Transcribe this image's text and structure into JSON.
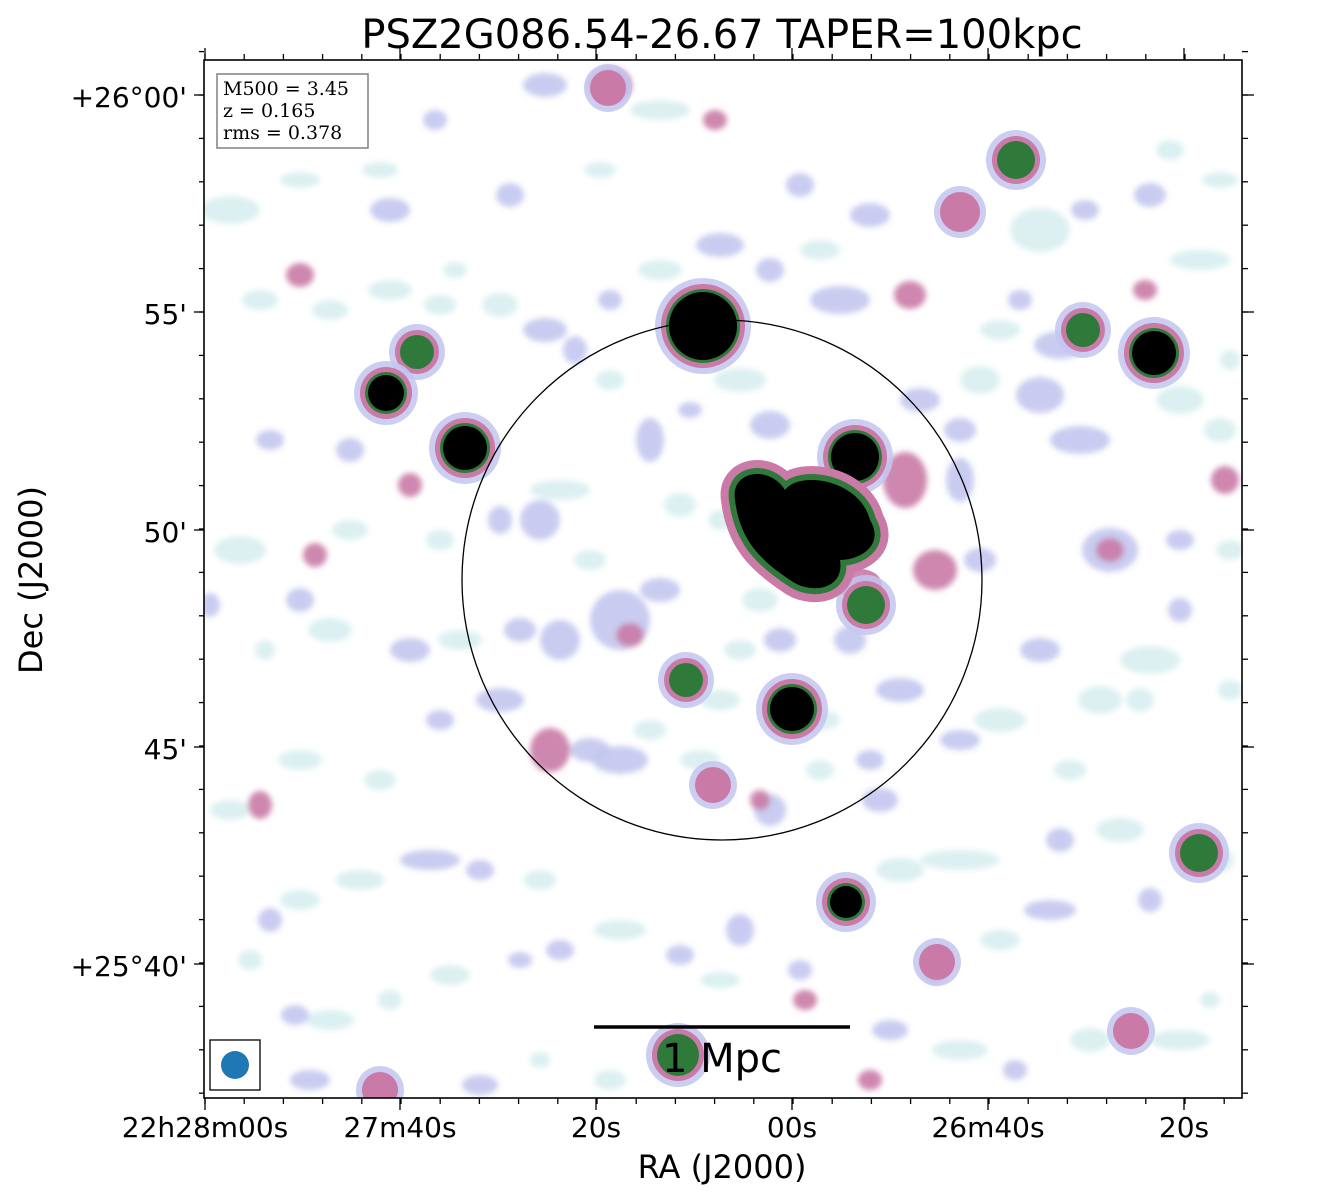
{
  "figure": {
    "title": "PSZ2G086.54-26.67 TAPER=100kpc",
    "xlabel": "RA (J2000)",
    "ylabel": "Dec (J2000)",
    "x_ticks": [
      "22h28m00s",
      "27m40s",
      "20s",
      "00s",
      "26m40s",
      "20s"
    ],
    "y_ticks": [
      "+26°00'",
      "55'",
      "50'",
      "45'",
      "+25°40'"
    ],
    "info_box": {
      "line1": "M500 = 3.45",
      "line2": "z = 0.165",
      "line3": "rms = 0.378"
    },
    "scale_bar_label": "1 Mpc",
    "colors": {
      "noise_light": "#d8eef0",
      "noise_lavender": "#c3c6ee",
      "emission_pink": "#c97aa6",
      "emission_green": "#2f7a3a",
      "emission_core": "#000000",
      "beam": "#1f77b4"
    }
  }
}
